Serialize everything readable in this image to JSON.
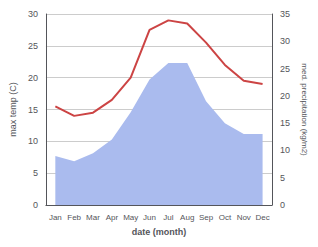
{
  "chart_data": {
    "type": "line",
    "categories": [
      "Jan",
      "Feb",
      "Mar",
      "Apr",
      "May",
      "Jun",
      "Jul",
      "Aug",
      "Sep",
      "Oct",
      "Nov",
      "Dec"
    ],
    "series": [
      {
        "type": "area",
        "color": "#aabbee",
        "axis": "y2",
        "values": [
          9.0,
          8.0,
          9.5,
          12.0,
          17.0,
          23.0,
          26.0,
          26.0,
          19.0,
          15.0,
          13.0,
          13.0
        ]
      },
      {
        "type": "line",
        "color": "#cc4444",
        "values": [
          15.5,
          14.0,
          14.5,
          16.5,
          20.0,
          27.5,
          29.0,
          28.5,
          25.5,
          22.0,
          19.5,
          19.0
        ]
      }
    ],
    "xlabel": "date (month)",
    "ylabel": "max temp (C)",
    "y2label": "med. precipitation (kg/m2)",
    "ylim": [
      0,
      30
    ],
    "yticks": [
      0,
      5,
      10,
      15,
      20,
      25,
      30
    ],
    "y2lim": [
      0,
      35
    ],
    "y2ticks": [
      0,
      5,
      10,
      15,
      20,
      25,
      30,
      35
    ],
    "grid": true
  }
}
